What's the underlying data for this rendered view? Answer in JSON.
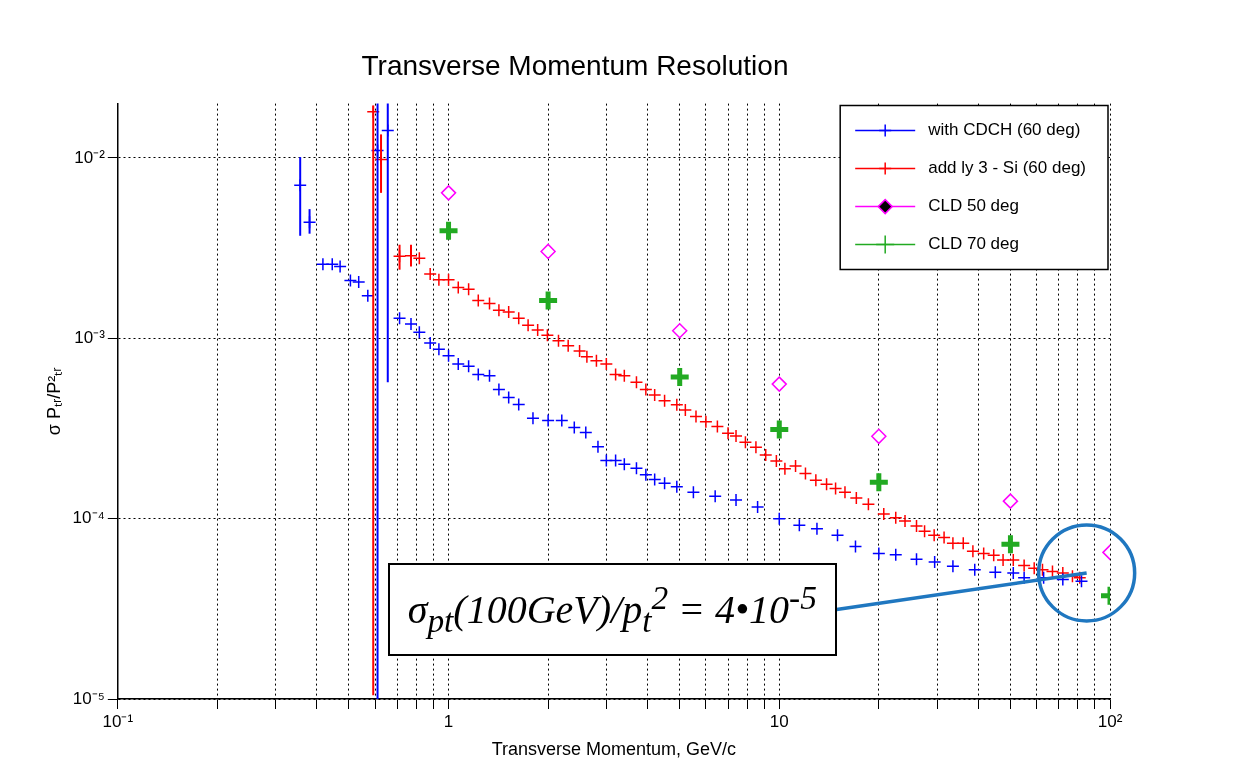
{
  "chart_data": {
    "type": "scatter",
    "title": "Transverse Momentum Resolution",
    "xlabel": "Transverse Momentum, GeV/c",
    "ylabel": "σ Pₜᵣ/P²ₜᵣ",
    "log": "xy",
    "grid": true,
    "legend": "top right",
    "xlim": [
      0.1,
      100
    ],
    "ylim": [
      1e-05,
      0.02
    ],
    "xticks": [
      {
        "value": 0.1,
        "label": "10⁻¹"
      },
      {
        "value": 0.2,
        "label": null
      },
      {
        "value": 0.3,
        "label": null
      },
      {
        "value": 0.4,
        "label": null
      },
      {
        "value": 0.5,
        "label": null
      },
      {
        "value": 0.6,
        "label": null
      },
      {
        "value": 0.7,
        "label": null
      },
      {
        "value": 0.8,
        "label": null
      },
      {
        "value": 0.9,
        "label": null
      },
      1,
      {
        "value": 2,
        "label": null
      },
      {
        "value": 3,
        "label": null
      },
      {
        "value": 4,
        "label": null
      },
      {
        "value": 5,
        "label": null
      },
      {
        "value": 6,
        "label": null
      },
      {
        "value": 7,
        "label": null
      },
      {
        "value": 8,
        "label": null
      },
      {
        "value": 9,
        "label": null
      },
      10,
      {
        "value": 20,
        "label": null
      },
      {
        "value": 30,
        "label": null
      },
      {
        "value": 40,
        "label": null
      },
      {
        "value": 50,
        "label": null
      },
      {
        "value": 60,
        "label": null
      },
      {
        "value": 70,
        "label": null
      },
      {
        "value": 80,
        "label": null
      },
      {
        "value": 90,
        "label": null
      },
      {
        "value": 100,
        "label": "10²"
      }
    ],
    "yticks": [
      {
        "value": 1e-05,
        "label": "10⁻⁵"
      },
      {
        "value": 0.0001,
        "label": "10⁻⁴"
      },
      {
        "value": 0.001,
        "label": "10⁻³"
      },
      {
        "value": 0.01,
        "label": "10⁻²"
      }
    ],
    "annotations": [
      {
        "text": "σ$_{pt}$(100GeV)/p$_{t}$$^{2}$ = 4•10$^{-5}$",
        "x": 85,
        "y": 5e-05
      }
    ],
    "series": [
      {
        "name": "with CDCH (60 deg)",
        "color": "#0000ff",
        "type": "scatter",
        "marker": "cross",
        "x": [
          0.356,
          0.38,
          0.417,
          0.445,
          0.47,
          0.505,
          0.535,
          0.57,
          0.61,
          0.655,
          0.711,
          0.77,
          0.816,
          0.88,
          0.935,
          1.0,
          1.07,
          1.15,
          1.23,
          1.33,
          1.42,
          1.52,
          1.63,
          1.8,
          2.0,
          2.2,
          2.4,
          2.6,
          2.83,
          3.0,
          3.2,
          3.4,
          3.7,
          3.95,
          4.2,
          4.5,
          4.9,
          5.5,
          6.4,
          7.4,
          8.6,
          10,
          11.5,
          13,
          15,
          17,
          20,
          22.5,
          26,
          29.5,
          33.5,
          39,
          45,
          51,
          55,
          63,
          72,
          82
        ],
        "values": [
          0.00705,
          0.0044,
          0.00257,
          0.00257,
          0.0025,
          0.00209,
          0.00205,
          0.00172,
          0.011,
          0.0142,
          0.00129,
          0.0012,
          0.00108,
          0.00094,
          0.00087,
          0.0008,
          0.00072,
          0.0007,
          0.00063,
          0.00062,
          0.00052,
          0.00047,
          0.00043,
          0.00036,
          0.00035,
          0.00035,
          0.00032,
          0.0003,
          0.00025,
          0.00021,
          0.00021,
          0.0002,
          0.00019,
          0.000175,
          0.000165,
          0.000157,
          0.00015,
          0.00014,
          0.000133,
          0.000127,
          0.000116,
          0.0001,
          9.2e-05,
          8.8e-05,
          8.1e-05,
          7e-05,
          6.4e-05,
          6.3e-05,
          5.95e-05,
          5.75e-05,
          5.45e-05,
          5.2e-05,
          5.05e-05,
          5e-05,
          4.7e-05,
          4.7e-05,
          4.6e-05,
          4.5e-05
        ],
        "errors": [
          [
            0.0037,
            0.0101
          ],
          [
            0.0038,
            0.0052
          ],
          null,
          null,
          null,
          null,
          null,
          null,
          [
            1e-05,
            0.02
          ],
          [
            0.00057,
            0.02
          ],
          null,
          null,
          null,
          null,
          null,
          null,
          null,
          null,
          null,
          null,
          null,
          null,
          null,
          null,
          null,
          null,
          null,
          null,
          null,
          null,
          null,
          null,
          null,
          null,
          null,
          null,
          null,
          null,
          null,
          null,
          null,
          null,
          null,
          null,
          null,
          null,
          null,
          null,
          null,
          null,
          null,
          null,
          null,
          null,
          null,
          null,
          null,
          null
        ]
      },
      {
        "name": "add ly 3 - Si (60 deg)",
        "color": "#ff0000",
        "type": "scatter",
        "marker": "cross",
        "x": [
          0.592,
          0.625,
          0.711,
          0.77,
          0.816,
          0.88,
          0.935,
          1.0,
          1.07,
          1.15,
          1.23,
          1.33,
          1.42,
          1.52,
          1.63,
          1.74,
          1.86,
          1.99,
          2.15,
          2.3,
          2.49,
          2.62,
          2.8,
          3.0,
          3.2,
          3.4,
          3.7,
          3.95,
          4.2,
          4.5,
          4.9,
          5.2,
          5.6,
          6.0,
          6.5,
          7.0,
          7.4,
          7.9,
          8.5,
          9.1,
          9.8,
          10.4,
          11.2,
          12.0,
          12.9,
          13.9,
          14.8,
          15.8,
          17.1,
          18.6,
          20.7,
          22.5,
          24,
          26,
          27.5,
          29.4,
          31.5,
          33.5,
          36,
          38.5,
          41.5,
          44.5,
          47.5,
          51,
          55,
          59,
          62.5,
          67,
          72,
          77,
          81
        ],
        "values": [
          0.018,
          0.0098,
          0.00285,
          0.00287,
          0.00278,
          0.00227,
          0.00211,
          0.00211,
          0.00191,
          0.00187,
          0.00162,
          0.00156,
          0.00143,
          0.0014,
          0.00129,
          0.00118,
          0.00111,
          0.00104,
          0.00097,
          0.00091,
          0.00085,
          0.00079,
          0.00075,
          0.00072,
          0.00063,
          0.00062,
          0.00057,
          0.00052,
          0.000485,
          0.00045,
          0.000428,
          0.0004,
          0.000368,
          0.000345,
          0.000324,
          0.000297,
          0.000287,
          0.000265,
          0.000249,
          0.000225,
          0.000209,
          0.000189,
          0.000196,
          0.000178,
          0.000163,
          0.000155,
          0.000147,
          0.00014,
          0.00013,
          0.00012,
          0.000106,
          0.000101,
          9.7e-05,
          9.1e-05,
          8.5e-05,
          8.1e-05,
          7.85e-05,
          7.3e-05,
          7.3e-05,
          6.6e-05,
          6.4e-05,
          6.27e-05,
          5.9e-05,
          5.9e-05,
          5.5e-05,
          5.3e-05,
          5.2e-05,
          5.1e-05,
          5e-05,
          4.8e-05,
          4.7e-05
        ],
        "errors": [
          [
            1.05e-05,
            0.0195
          ],
          [
            0.0064,
            0.0135
          ],
          [
            0.0024,
            0.0033
          ],
          [
            0.0025,
            0.0033
          ],
          null,
          null,
          null,
          null,
          null,
          null,
          null,
          null,
          null,
          null,
          null,
          null,
          null,
          null,
          null,
          null,
          null,
          null,
          null,
          null,
          null,
          null,
          null,
          null,
          null,
          null,
          null,
          null,
          null,
          null,
          null,
          null,
          null,
          null,
          null,
          null,
          null,
          null,
          null,
          null,
          null,
          null,
          null,
          null,
          null,
          null,
          null,
          null,
          null,
          null,
          null,
          null,
          null,
          null,
          null,
          null,
          null,
          null,
          null,
          null,
          null,
          null,
          null,
          null,
          null,
          null,
          null
        ]
      },
      {
        "name": "CLD 50 deg",
        "color": "#ff00ff",
        "type": "scatter",
        "marker": "diamond",
        "x": [
          1,
          2,
          5,
          10,
          20,
          50,
          100
        ],
        "values": [
          0.0064,
          0.00303,
          0.0011,
          0.000557,
          0.000286,
          0.000125,
          6.5e-05
        ]
      },
      {
        "name": "CLD 70 deg",
        "color": "#22aa22",
        "type": "scatter",
        "marker": "cross",
        "x": [
          1,
          2,
          5,
          10,
          20,
          50,
          100
        ],
        "values": [
          0.00395,
          0.00162,
          0.00061,
          0.000312,
          0.000159,
          7.2e-05,
          3.74e-05
        ]
      }
    ]
  }
}
